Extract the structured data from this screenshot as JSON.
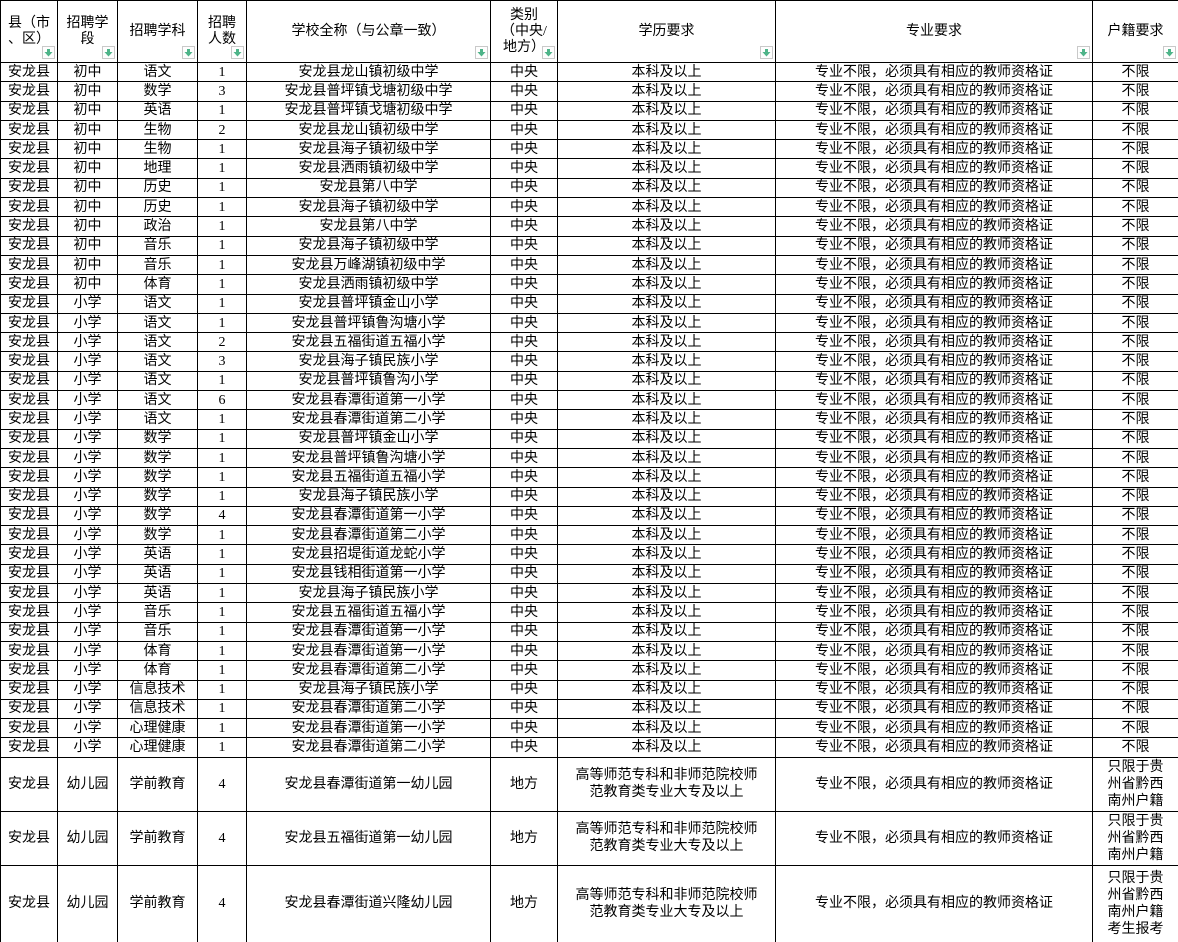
{
  "colors": {
    "accent_red": "#ff0000",
    "filter_arrow_green": "#4eb489",
    "grid_border": "#000000",
    "background": "#ffffff"
  },
  "table": {
    "columns": [
      {
        "key": "county",
        "label": "县（市\n、区）"
      },
      {
        "key": "stage",
        "label": "招聘学\n段"
      },
      {
        "key": "subject",
        "label": "招聘学科"
      },
      {
        "key": "num",
        "label": "招聘\n人数"
      },
      {
        "key": "school",
        "label": "学校全称（与公章一致）"
      },
      {
        "key": "category",
        "label": "类别\n（中央/\n地方）"
      },
      {
        "key": "edu",
        "label": "学历要求"
      },
      {
        "key": "major",
        "label": "专业要求",
        "red": true
      },
      {
        "key": "hukou",
        "label": "户籍要求"
      }
    ],
    "rows": [
      [
        "安龙县",
        "初中",
        "语文",
        "1",
        "安龙县龙山镇初级中学",
        "中央",
        "本科及以上",
        "专业不限，必须具有相应的教师资格证",
        "不限"
      ],
      [
        "安龙县",
        "初中",
        "数学",
        "3",
        "安龙县普坪镇戈塘初级中学",
        "中央",
        "本科及以上",
        "专业不限，必须具有相应的教师资格证",
        "不限"
      ],
      [
        "安龙县",
        "初中",
        "英语",
        "1",
        "安龙县普坪镇戈塘初级中学",
        "中央",
        "本科及以上",
        "专业不限，必须具有相应的教师资格证",
        "不限"
      ],
      [
        "安龙县",
        "初中",
        "生物",
        "2",
        "安龙县龙山镇初级中学",
        "中央",
        "本科及以上",
        "专业不限，必须具有相应的教师资格证",
        "不限"
      ],
      [
        "安龙县",
        "初中",
        "生物",
        "1",
        "安龙县海子镇初级中学",
        "中央",
        "本科及以上",
        "专业不限，必须具有相应的教师资格证",
        "不限"
      ],
      [
        "安龙县",
        "初中",
        "地理",
        "1",
        "安龙县洒雨镇初级中学",
        "中央",
        "本科及以上",
        "专业不限，必须具有相应的教师资格证",
        "不限"
      ],
      [
        "安龙县",
        "初中",
        "历史",
        "1",
        "安龙县第八中学",
        "中央",
        "本科及以上",
        "专业不限，必须具有相应的教师资格证",
        "不限"
      ],
      [
        "安龙县",
        "初中",
        "历史",
        "1",
        "安龙县海子镇初级中学",
        "中央",
        "本科及以上",
        "专业不限，必须具有相应的教师资格证",
        "不限"
      ],
      [
        "安龙县",
        "初中",
        "政治",
        "1",
        "安龙县第八中学",
        "中央",
        "本科及以上",
        "专业不限，必须具有相应的教师资格证",
        "不限"
      ],
      [
        "安龙县",
        "初中",
        "音乐",
        "1",
        "安龙县海子镇初级中学",
        "中央",
        "本科及以上",
        "专业不限，必须具有相应的教师资格证",
        "不限"
      ],
      [
        "安龙县",
        "初中",
        "音乐",
        "1",
        "安龙县万峰湖镇初级中学",
        "中央",
        "本科及以上",
        "专业不限，必须具有相应的教师资格证",
        "不限"
      ],
      [
        "安龙县",
        "初中",
        "体育",
        "1",
        "安龙县洒雨镇初级中学",
        "中央",
        "本科及以上",
        "专业不限，必须具有相应的教师资格证",
        "不限"
      ],
      [
        "安龙县",
        "小学",
        "语文",
        "1",
        "安龙县普坪镇金山小学",
        "中央",
        "本科及以上",
        "专业不限，必须具有相应的教师资格证",
        "不限"
      ],
      [
        "安龙县",
        "小学",
        "语文",
        "1",
        "安龙县普坪镇鲁沟塘小学",
        "中央",
        "本科及以上",
        "专业不限，必须具有相应的教师资格证",
        "不限"
      ],
      [
        "安龙县",
        "小学",
        "语文",
        "2",
        "安龙县五福街道五福小学",
        "中央",
        "本科及以上",
        "专业不限，必须具有相应的教师资格证",
        "不限"
      ],
      [
        "安龙县",
        "小学",
        "语文",
        "3",
        "安龙县海子镇民族小学",
        "中央",
        "本科及以上",
        "专业不限，必须具有相应的教师资格证",
        "不限"
      ],
      [
        "安龙县",
        "小学",
        "语文",
        "1",
        "安龙县普坪镇鲁沟小学",
        "中央",
        "本科及以上",
        "专业不限，必须具有相应的教师资格证",
        "不限"
      ],
      [
        "安龙县",
        "小学",
        "语文",
        "6",
        "安龙县春潭街道第一小学",
        "中央",
        "本科及以上",
        "专业不限，必须具有相应的教师资格证",
        "不限"
      ],
      [
        "安龙县",
        "小学",
        "语文",
        "1",
        "安龙县春潭街道第二小学",
        "中央",
        "本科及以上",
        "专业不限，必须具有相应的教师资格证",
        "不限"
      ],
      [
        "安龙县",
        "小学",
        "数学",
        "1",
        "安龙县普坪镇金山小学",
        "中央",
        "本科及以上",
        "专业不限，必须具有相应的教师资格证",
        "不限"
      ],
      [
        "安龙县",
        "小学",
        "数学",
        "1",
        "安龙县普坪镇鲁沟塘小学",
        "中央",
        "本科及以上",
        "专业不限，必须具有相应的教师资格证",
        "不限"
      ],
      [
        "安龙县",
        "小学",
        "数学",
        "1",
        "安龙县五福街道五福小学",
        "中央",
        "本科及以上",
        "专业不限，必须具有相应的教师资格证",
        "不限"
      ],
      [
        "安龙县",
        "小学",
        "数学",
        "1",
        "安龙县海子镇民族小学",
        "中央",
        "本科及以上",
        "专业不限，必须具有相应的教师资格证",
        "不限"
      ],
      [
        "安龙县",
        "小学",
        "数学",
        "4",
        "安龙县春潭街道第一小学",
        "中央",
        "本科及以上",
        "专业不限，必须具有相应的教师资格证",
        "不限"
      ],
      [
        "安龙县",
        "小学",
        "数学",
        "1",
        "安龙县春潭街道第二小学",
        "中央",
        "本科及以上",
        "专业不限，必须具有相应的教师资格证",
        "不限"
      ],
      [
        "安龙县",
        "小学",
        "英语",
        "1",
        "安龙县招堤街道龙蛇小学",
        "中央",
        "本科及以上",
        "专业不限，必须具有相应的教师资格证",
        "不限"
      ],
      [
        "安龙县",
        "小学",
        "英语",
        "1",
        "安龙县钱相街道第一小学",
        "中央",
        "本科及以上",
        "专业不限，必须具有相应的教师资格证",
        "不限"
      ],
      [
        "安龙县",
        "小学",
        "英语",
        "1",
        "安龙县海子镇民族小学",
        "中央",
        "本科及以上",
        "专业不限，必须具有相应的教师资格证",
        "不限"
      ],
      [
        "安龙县",
        "小学",
        "音乐",
        "1",
        "安龙县五福街道五福小学",
        "中央",
        "本科及以上",
        "专业不限，必须具有相应的教师资格证",
        "不限"
      ],
      [
        "安龙县",
        "小学",
        "音乐",
        "1",
        "安龙县春潭街道第一小学",
        "中央",
        "本科及以上",
        "专业不限，必须具有相应的教师资格证",
        "不限"
      ],
      [
        "安龙县",
        "小学",
        "体育",
        "1",
        "安龙县春潭街道第一小学",
        "中央",
        "本科及以上",
        "专业不限，必须具有相应的教师资格证",
        "不限"
      ],
      [
        "安龙县",
        "小学",
        "体育",
        "1",
        "安龙县春潭街道第二小学",
        "中央",
        "本科及以上",
        "专业不限，必须具有相应的教师资格证",
        "不限"
      ],
      [
        "安龙县",
        "小学",
        "信息技术",
        "1",
        "安龙县海子镇民族小学",
        "中央",
        "本科及以上",
        "专业不限，必须具有相应的教师资格证",
        "不限"
      ],
      [
        "安龙县",
        "小学",
        "信息技术",
        "1",
        "安龙县春潭街道第二小学",
        "中央",
        "本科及以上",
        "专业不限，必须具有相应的教师资格证",
        "不限"
      ],
      [
        "安龙县",
        "小学",
        "心理健康",
        "1",
        "安龙县春潭街道第一小学",
        "中央",
        "本科及以上",
        "专业不限，必须具有相应的教师资格证",
        "不限"
      ],
      [
        "安龙县",
        "小学",
        "心理健康",
        "1",
        "安龙县春潭街道第二小学",
        "中央",
        "本科及以上",
        "专业不限，必须具有相应的教师资格证",
        "不限"
      ],
      [
        "安龙县",
        "幼儿园",
        "学前教育",
        "4",
        "安龙县春潭街道第一幼儿园",
        "地方",
        "高等师范专科和非师范院校师范教育类专业大专及以上",
        "专业不限，必须具有相应的教师资格证",
        "只限于贵州省黔西南州户籍"
      ],
      [
        "安龙县",
        "幼儿园",
        "学前教育",
        "4",
        "安龙县五福街道第一幼儿园",
        "地方",
        "高等师范专科和非师范院校师范教育类专业大专及以上",
        "专业不限，必须具有相应的教师资格证",
        "只限于贵州省黔西南州户籍"
      ],
      [
        "安龙县",
        "幼儿园",
        "学前教育",
        "4",
        "安龙县春潭街道兴隆幼儿园",
        "地方",
        "高等师范专科和非师范院校师范教育类专业大专及以上",
        "专业不限，必须具有相应的教师资格证",
        "只限于贵州省黔西南州户籍考生报考"
      ]
    ]
  }
}
